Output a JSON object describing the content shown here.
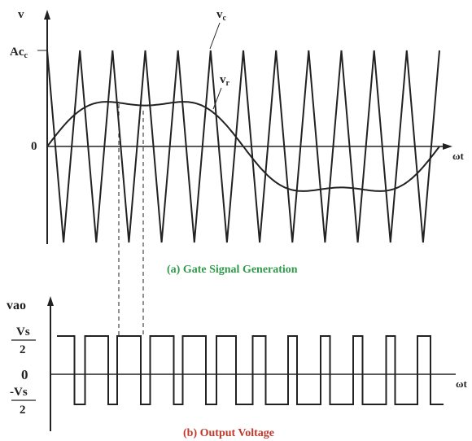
{
  "top": {
    "y_label": "v",
    "carrier_level": "Ac",
    "carrier_level_sub": "c",
    "carrier_label": "v",
    "carrier_label_sub": "c",
    "reference_label": "v",
    "reference_label_sub": "r",
    "origin": "0",
    "x_label": "ωt",
    "caption": "(a) Gate Signal Generation"
  },
  "bottom": {
    "y_label": "vao",
    "high_num": "Vs",
    "high_den": "2",
    "origin": "0",
    "low_num": "-Vs",
    "low_den": "2",
    "x_label": "ωt",
    "caption": "(b) Output Voltage"
  }
}
